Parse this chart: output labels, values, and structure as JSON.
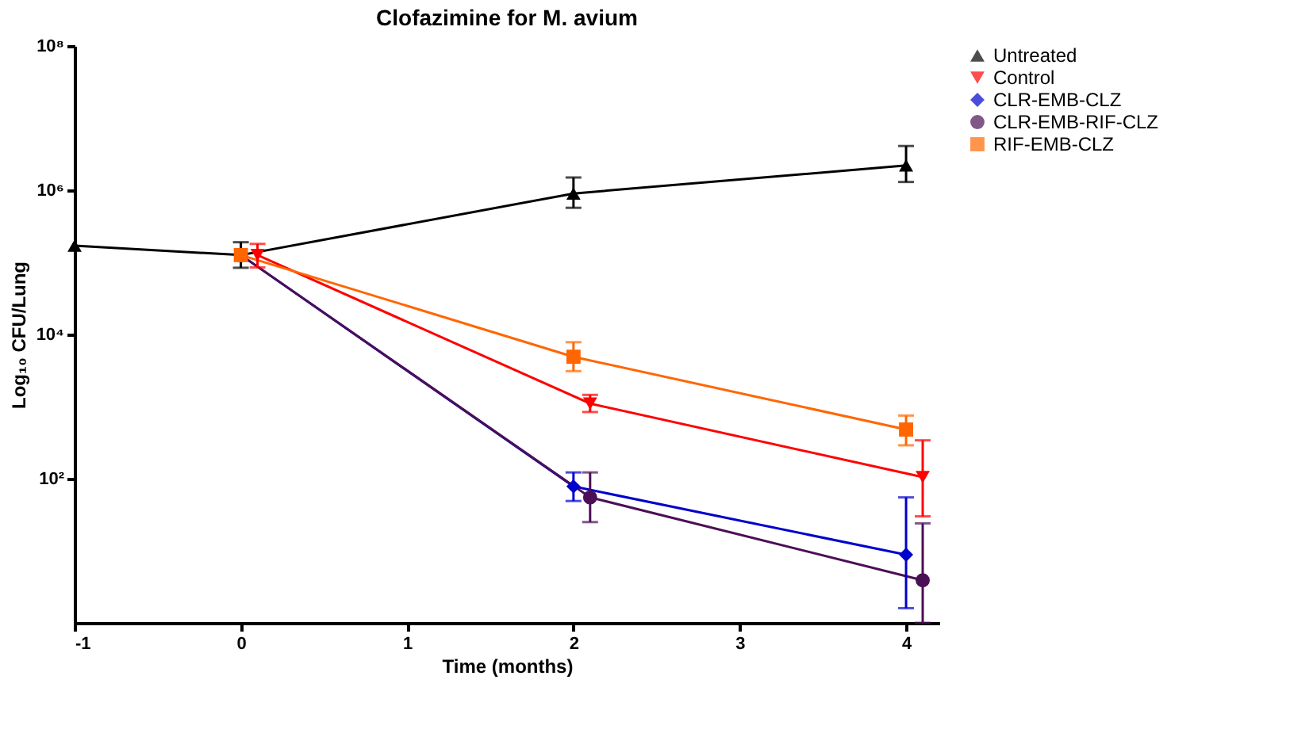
{
  "chart_data": {
    "type": "line",
    "title": "Clofazimine for M. avium",
    "xlabel": "Time (months)",
    "ylabel": "Log₁₀ CFU/Lung",
    "log": "y",
    "xlim": [
      -1,
      4.2
    ],
    "xticks": [
      -1,
      0,
      1,
      2,
      3,
      4
    ],
    "ylim": [
      1,
      100000000
    ],
    "yticks": [
      {
        "value": 100,
        "label": "10²"
      },
      {
        "value": 10000,
        "label": "10⁴"
      },
      {
        "value": 1000000,
        "label": "10⁶"
      },
      {
        "value": 100000000,
        "label": "10⁸"
      }
    ],
    "grid": false,
    "legend": "right",
    "series": [
      {
        "name": "Untreated",
        "color": "#000000",
        "marker": "triangle",
        "x": [
          -1,
          0,
          2,
          4
        ],
        "values": [
          170000,
          126000,
          900000,
          2200000
        ],
        "errors": [
          null,
          [
            84000,
            190000
          ],
          [
            570000,
            1500000
          ],
          [
            1300000,
            4100000
          ]
        ]
      },
      {
        "name": "Control",
        "color": "#ff0000",
        "marker": "triangle-down",
        "x": [
          0.1,
          2.1,
          4.1
        ],
        "values": [
          126000,
          1100,
          105
        ],
        "errors": [
          [
            85000,
            180000
          ],
          [
            840,
            1450
          ],
          [
            30,
            340
          ]
        ]
      },
      {
        "name": "CLR-EMB-CLZ",
        "color": "#0000cc",
        "marker": "diamond",
        "x": [
          0,
          2,
          4
        ],
        "values": [
          126000,
          78,
          8.8
        ],
        "errors": [
          null,
          [
            49,
            122
          ],
          [
            1.6,
            55
          ]
        ]
      },
      {
        "name": "CLR-EMB-RIF-CLZ",
        "color": "#4b0f55",
        "marker": "circle",
        "x": [
          0,
          2.1,
          4.1
        ],
        "values": [
          126000,
          55,
          3.9
        ],
        "errors": [
          null,
          [
            25,
            122
          ],
          [
            1,
            24
          ]
        ]
      },
      {
        "name": "RIF-EMB-CLZ",
        "color": "#ff6600",
        "marker": "square",
        "x": [
          0,
          2,
          4
        ],
        "values": [
          126000,
          4900,
          480
        ],
        "errors": [
          null,
          [
            3100,
            7800
          ],
          [
            290,
            750
          ]
        ]
      }
    ]
  }
}
